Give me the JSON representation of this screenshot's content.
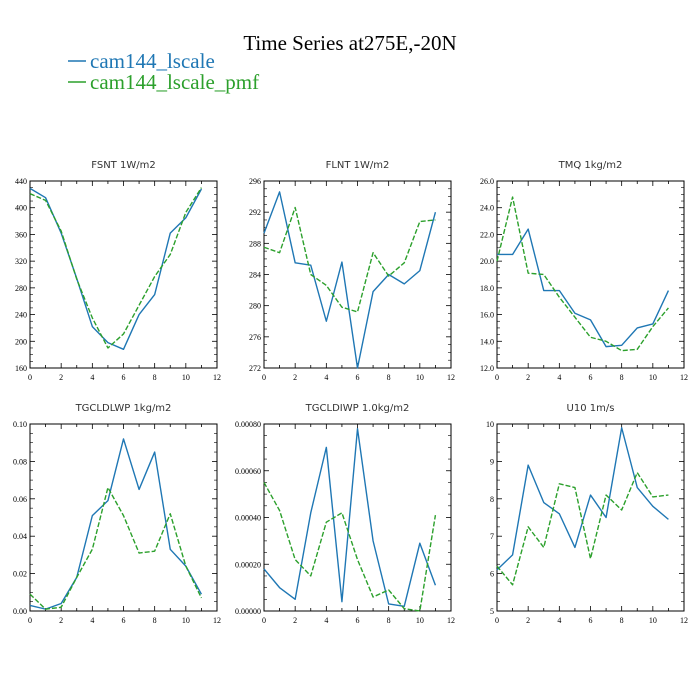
{
  "title": "Time Series at275E,-20N",
  "legend": [
    {
      "label": "cam144_lscale",
      "color": "#1f77b4"
    },
    {
      "label": "cam144_lscale_pmf",
      "color": "#2ca02c"
    }
  ],
  "chart_data": [
    {
      "type": "line",
      "title": "FSNT  1W/m2",
      "xlim": [
        0,
        12
      ],
      "ylim": [
        160,
        440
      ],
      "xticks": [
        0,
        2,
        4,
        6,
        8,
        10,
        12
      ],
      "xtick_labels": [
        "0",
        "2",
        "4",
        "6",
        "8",
        "10",
        "12"
      ],
      "yticks": [
        160,
        200,
        240,
        280,
        320,
        360,
        400,
        440
      ],
      "ytick_labels": [
        "160",
        "200",
        "240",
        "280",
        "320",
        "360",
        "400",
        "440"
      ],
      "x": [
        0,
        1,
        2,
        3,
        4,
        5,
        6,
        7,
        8,
        9,
        10,
        11
      ],
      "series": [
        {
          "name": "cam144_lscale",
          "color": "#1f77b4",
          "dash": "solid",
          "values": [
            429,
            415,
            362,
            294,
            222,
            198,
            188,
            240,
            270,
            362,
            385,
            428
          ]
        },
        {
          "name": "cam144_lscale_pmf",
          "color": "#2ca02c",
          "dash": "dashed",
          "values": [
            421,
            411,
            365,
            293,
            235,
            190,
            211,
            254,
            297,
            330,
            393,
            430
          ]
        }
      ]
    },
    {
      "type": "line",
      "title": "FLNT  1W/m2",
      "xlim": [
        0,
        12
      ],
      "ylim": [
        272,
        296
      ],
      "xticks": [
        0,
        2,
        4,
        6,
        8,
        10,
        12
      ],
      "xtick_labels": [
        "0",
        "2",
        "4",
        "6",
        "8",
        "10",
        "12"
      ],
      "yticks": [
        272,
        276,
        280,
        284,
        288,
        292,
        296
      ],
      "ytick_labels": [
        "272",
        "276",
        "280",
        "284",
        "288",
        "292",
        "296"
      ],
      "x": [
        0,
        1,
        2,
        3,
        4,
        5,
        6,
        7,
        8,
        9,
        10,
        11
      ],
      "series": [
        {
          "name": "cam144_lscale",
          "color": "#1f77b4",
          "dash": "solid",
          "values": [
            289.3,
            294.6,
            285.5,
            285.2,
            278.0,
            285.6,
            272.0,
            281.8,
            284.0,
            282.8,
            284.5,
            292.0
          ]
        },
        {
          "name": "cam144_lscale_pmf",
          "color": "#2ca02c",
          "dash": "dashed",
          "values": [
            287.5,
            286.8,
            292.6,
            284.0,
            282.6,
            279.8,
            279.2,
            286.8,
            283.8,
            285.5,
            290.8,
            291.0
          ]
        }
      ]
    },
    {
      "type": "line",
      "title": "TMQ  1kg/m2",
      "xlim": [
        0,
        12
      ],
      "ylim": [
        12,
        26
      ],
      "xticks": [
        0,
        2,
        4,
        6,
        8,
        10,
        12
      ],
      "xtick_labels": [
        "0",
        "2",
        "4",
        "6",
        "8",
        "10",
        "12"
      ],
      "yticks": [
        12,
        14,
        16,
        18,
        20,
        22,
        24,
        26
      ],
      "ytick_labels": [
        "12.0",
        "14.0",
        "16.0",
        "18.0",
        "20.0",
        "22.0",
        "24.0",
        "26.0"
      ],
      "x": [
        0,
        1,
        2,
        3,
        4,
        5,
        6,
        7,
        8,
        9,
        10,
        11
      ],
      "series": [
        {
          "name": "cam144_lscale",
          "color": "#1f77b4",
          "dash": "solid",
          "values": [
            20.5,
            20.5,
            22.4,
            17.8,
            17.8,
            16.1,
            15.6,
            13.6,
            13.7,
            15.0,
            15.3,
            17.8
          ]
        },
        {
          "name": "cam144_lscale_pmf",
          "color": "#2ca02c",
          "dash": "dashed",
          "values": [
            20.0,
            24.8,
            19.1,
            19.0,
            17.3,
            15.8,
            14.3,
            14.0,
            13.3,
            13.4,
            15.1,
            16.5
          ]
        }
      ]
    },
    {
      "type": "line",
      "title": "TGCLDLWP  1kg/m2",
      "xlim": [
        0,
        12
      ],
      "ylim": [
        0,
        0.1
      ],
      "xticks": [
        0,
        2,
        4,
        6,
        8,
        10,
        12
      ],
      "xtick_labels": [
        "0",
        "2",
        "4",
        "6",
        "8",
        "10",
        "12"
      ],
      "yticks": [
        0,
        0.02,
        0.04,
        0.06,
        0.08,
        0.1
      ],
      "ytick_labels": [
        "0.00",
        "0.02",
        "0.04",
        "0.06",
        "0.08",
        "0.10"
      ],
      "x": [
        0,
        1,
        2,
        3,
        4,
        5,
        6,
        7,
        8,
        9,
        10,
        11
      ],
      "series": [
        {
          "name": "cam144_lscale",
          "color": "#1f77b4",
          "dash": "solid",
          "values": [
            0.003,
            0.001,
            0.004,
            0.018,
            0.051,
            0.059,
            0.092,
            0.065,
            0.085,
            0.033,
            0.024,
            0.009
          ]
        },
        {
          "name": "cam144_lscale_pmf",
          "color": "#2ca02c",
          "dash": "dashed",
          "values": [
            0.009,
            0.001,
            0.002,
            0.018,
            0.033,
            0.066,
            0.051,
            0.031,
            0.032,
            0.052,
            0.024,
            0.007
          ]
        }
      ]
    },
    {
      "type": "line",
      "title": "TGCLDIWP  1.0kg/m2",
      "xlim": [
        0,
        12
      ],
      "ylim": [
        0,
        0.0008
      ],
      "xticks": [
        0,
        2,
        4,
        6,
        8,
        10,
        12
      ],
      "xtick_labels": [
        "0",
        "2",
        "4",
        "6",
        "8",
        "10",
        "12"
      ],
      "yticks": [
        0,
        0.0002,
        0.0004,
        0.0006,
        0.0008
      ],
      "ytick_labels": [
        "0.00000",
        "0.00020",
        "0.00040",
        "0.00060",
        "0.00080"
      ],
      "x": [
        0,
        1,
        2,
        3,
        4,
        5,
        6,
        7,
        8,
        9,
        10,
        11
      ],
      "series": [
        {
          "name": "cam144_lscale",
          "color": "#1f77b4",
          "dash": "solid",
          "values": [
            0.00018,
            0.0001,
            5e-05,
            0.00042,
            0.0007,
            4e-05,
            0.00078,
            0.0003,
            3e-05,
            2e-05,
            0.00029,
            0.00011
          ]
        },
        {
          "name": "cam144_lscale_pmf",
          "color": "#2ca02c",
          "dash": "dashed",
          "values": [
            0.00055,
            0.00043,
            0.00022,
            0.00015,
            0.00038,
            0.00042,
            0.00022,
            6e-05,
            9e-05,
            1e-05,
            0.0,
            0.00041
          ]
        }
      ]
    },
    {
      "type": "line",
      "title": "U10  1m/s",
      "xlim": [
        0,
        12
      ],
      "ylim": [
        5,
        10
      ],
      "xticks": [
        0,
        2,
        4,
        6,
        8,
        10,
        12
      ],
      "xtick_labels": [
        "0",
        "2",
        "4",
        "6",
        "8",
        "10",
        "12"
      ],
      "yticks": [
        5,
        6,
        7,
        8,
        9,
        10
      ],
      "ytick_labels": [
        "5",
        "6",
        "7",
        "8",
        "9",
        "10"
      ],
      "x": [
        0,
        1,
        2,
        3,
        4,
        5,
        6,
        7,
        8,
        9,
        10,
        11
      ],
      "series": [
        {
          "name": "cam144_lscale",
          "color": "#1f77b4",
          "dash": "solid",
          "values": [
            6.1,
            6.5,
            8.9,
            7.9,
            7.6,
            6.7,
            8.1,
            7.5,
            9.9,
            8.3,
            7.8,
            7.45
          ]
        },
        {
          "name": "cam144_lscale_pmf",
          "color": "#2ca02c",
          "dash": "dashed",
          "values": [
            6.2,
            5.7,
            7.25,
            6.7,
            8.4,
            8.3,
            6.4,
            8.1,
            7.7,
            8.7,
            8.05,
            8.1
          ]
        }
      ]
    }
  ]
}
